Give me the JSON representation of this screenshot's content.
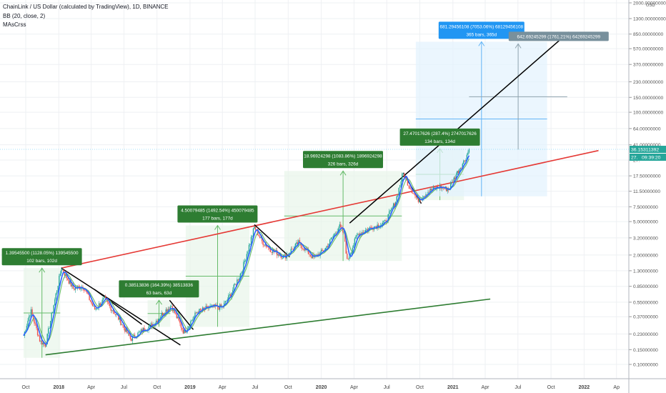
{
  "header": {
    "title": "ChainLink / US Dollar (calculated by TradingView), 1D, BINANCE",
    "ind1": "BB (20, close, 2)",
    "ind2": "MAsCrss"
  },
  "price_axis": {
    "currency": "USD",
    "current_price": "36.15311392",
    "current_price_prefix": "27.",
    "countdown": "09:39:20"
  },
  "colors": {
    "bg": "#ffffff",
    "grid": "#eef0f3",
    "up": "#26a69a",
    "down": "#ef5350",
    "upper_trend": "#e53935",
    "lower_trend": "#2e7d32",
    "black_line": "#000000",
    "bb_mid": "#2962ff",
    "ma": "#66bb6a",
    "label_green": "#2e7d32",
    "label_blue": "#2196f3",
    "label_gray": "#78909c"
  },
  "chart_data": {
    "type": "candlestick",
    "title": "ChainLink / US Dollar (calculated by TradingView), 1D, BINANCE",
    "y_scale": "log",
    "y_unit": "USD",
    "y_ticks": [
      "0.10000000",
      "0.15000000",
      "0.23000000",
      "0.37000000",
      "0.55000000",
      "0.85000000",
      "1.30000000",
      "2.00000000",
      "3.20000000",
      "5.00000000",
      "7.50000000",
      "11.50000000",
      "17.50000000",
      "27.",
      "41.00000000",
      "64.00000000",
      "100.00000000",
      "150.00000000",
      "230.00000000",
      "370.00000000",
      "570.00000000",
      "850.00000000",
      "1300.00000000",
      "2000.00000000"
    ],
    "x_ticks": [
      "Oct",
      "2018",
      "Apr",
      "Jul",
      "Oct",
      "2019",
      "Apr",
      "Jul",
      "Oct",
      "2020",
      "Apr",
      "Jul",
      "Oct",
      "2021",
      "Apr",
      "Jul",
      "Oct",
      "2022",
      "Ap"
    ],
    "price_path": [
      {
        "d": "2017-09-25",
        "p": 0.22
      },
      {
        "d": "2017-10-15",
        "p": 0.44
      },
      {
        "d": "2017-11-10",
        "p": 0.19
      },
      {
        "d": "2017-11-25",
        "p": 0.17
      },
      {
        "d": "2018-01-08",
        "p": 1.4
      },
      {
        "d": "2018-02-10",
        "p": 0.8
      },
      {
        "d": "2018-03-10",
        "p": 0.85
      },
      {
        "d": "2018-04-10",
        "p": 0.45
      },
      {
        "d": "2018-05-08",
        "p": 0.6
      },
      {
        "d": "2018-06-15",
        "p": 0.36
      },
      {
        "d": "2018-07-20",
        "p": 0.2
      },
      {
        "d": "2018-08-25",
        "p": 0.26
      },
      {
        "d": "2018-09-20",
        "p": 0.3
      },
      {
        "d": "2018-10-20",
        "p": 0.42
      },
      {
        "d": "2018-11-10",
        "p": 0.5
      },
      {
        "d": "2018-12-15",
        "p": 0.24
      },
      {
        "d": "2019-01-20",
        "p": 0.42
      },
      {
        "d": "2019-02-25",
        "p": 0.48
      },
      {
        "d": "2019-04-01",
        "p": 0.48
      },
      {
        "d": "2019-04-25",
        "p": 0.7
      },
      {
        "d": "2019-05-25",
        "p": 1.3
      },
      {
        "d": "2019-06-29",
        "p": 4.3
      },
      {
        "d": "2019-07-20",
        "p": 2.9
      },
      {
        "d": "2019-08-15",
        "p": 2.3
      },
      {
        "d": "2019-09-20",
        "p": 1.9
      },
      {
        "d": "2019-10-30",
        "p": 2.8
      },
      {
        "d": "2019-12-10",
        "p": 1.85
      },
      {
        "d": "2020-01-10",
        "p": 2.3
      },
      {
        "d": "2020-02-20",
        "p": 4.4
      },
      {
        "d": "2020-03-05",
        "p": 3.5
      },
      {
        "d": "2020-03-13",
        "p": 1.7
      },
      {
        "d": "2020-04-10",
        "p": 3.5
      },
      {
        "d": "2020-05-20",
        "p": 4.3
      },
      {
        "d": "2020-06-25",
        "p": 4.8
      },
      {
        "d": "2020-07-25",
        "p": 8.5
      },
      {
        "d": "2020-08-15",
        "p": 18.8
      },
      {
        "d": "2020-08-30",
        "p": 14
      },
      {
        "d": "2020-09-25",
        "p": 9
      },
      {
        "d": "2020-10-25",
        "p": 11.5
      },
      {
        "d": "2020-11-25",
        "p": 13
      },
      {
        "d": "2020-12-20",
        "p": 12
      },
      {
        "d": "2021-01-15",
        "p": 20
      },
      {
        "d": "2021-02-03",
        "p": 27
      },
      {
        "d": "2021-02-15",
        "p": 36
      }
    ],
    "trendlines": [
      {
        "name": "upper-red",
        "from": {
          "d": "2018-01-08",
          "p": 1.4
        },
        "to": {
          "d": "2022-02-10",
          "p": 35
        }
      },
      {
        "name": "lower-green",
        "from": {
          "d": "2017-11-25",
          "p": 0.13
        },
        "to": {
          "d": "2021-04-15",
          "p": 0.6
        }
      }
    ],
    "measurements": [
      {
        "text": "1.39545500 (1128.05%) 139545500",
        "sub": "102 bars, 102d",
        "from": {
          "d": "2017-09-25",
          "p": 0.12
        },
        "to": {
          "d": "2018-01-05",
          "p": 1.4
        },
        "style": "green"
      },
      {
        "text": "0.38513836 (164.39%) 38513836",
        "sub": "63 bars, 63d",
        "from": {
          "d": "2018-09-05",
          "p": 0.28
        },
        "to": {
          "d": "2018-11-07",
          "p": 0.58
        },
        "style": "green"
      },
      {
        "text": "4.50079485 (1492.54%) 450079485",
        "sub": "177 bars, 177d",
        "from": {
          "d": "2018-12-20",
          "p": 0.28
        },
        "to": {
          "d": "2019-06-15",
          "p": 4.5
        },
        "style": "green"
      },
      {
        "text": "18.96924298 (1083.86%) 1896924298",
        "sub": "326 bars, 326d",
        "from": {
          "d": "2019-09-20",
          "p": 1.7
        },
        "to": {
          "d": "2020-08-12",
          "p": 20
        },
        "style": "green"
      },
      {
        "text": "27.47017626 (287.4%) 2747017626",
        "sub": "134 bars, 134d",
        "from": {
          "d": "2020-09-20",
          "p": 9
        },
        "to": {
          "d": "2021-02-01",
          "p": 37
        },
        "style": "green"
      },
      {
        "text": "681.29456108 (7053.06%) 68129456108",
        "sub": "365 bars, 365d",
        "from": {
          "d": "2020-09-20",
          "p": 10
        },
        "to": {
          "d": "2021-09-20",
          "p": 690
        },
        "style": "blue"
      },
      {
        "text": "642.69245299 (1761.21%) 64269245299",
        "sub": "",
        "from": {
          "d": "2021-02-15",
          "p": 36
        },
        "to": {
          "d": "2021-11-15",
          "p": 650
        },
        "style": "gray"
      }
    ]
  }
}
